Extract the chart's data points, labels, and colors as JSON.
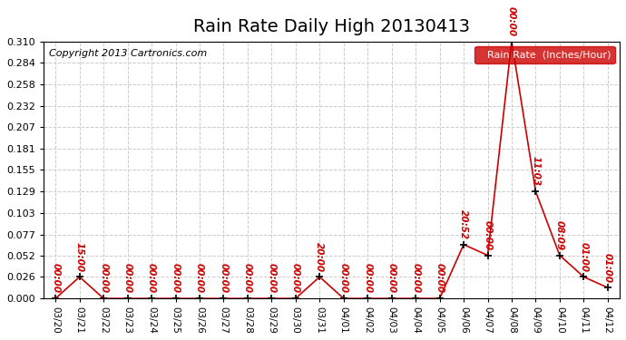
{
  "title": "Rain Rate Daily High 20130413",
  "copyright": "Copyright 2013 Cartronics.com",
  "legend_label": "Rain Rate  (Inches/Hour)",
  "x_labels": [
    "03/20",
    "03/21",
    "03/22",
    "03/23",
    "03/24",
    "03/25",
    "03/26",
    "03/27",
    "03/28",
    "03/29",
    "03/30",
    "03/31",
    "04/01",
    "04/02",
    "04/03",
    "04/04",
    "04/05",
    "04/06",
    "04/07",
    "04/08",
    "04/09",
    "04/10",
    "04/11",
    "04/12"
  ],
  "y_values": [
    0.0,
    0.026,
    0.0,
    0.0,
    0.0,
    0.0,
    0.0,
    0.0,
    0.0,
    0.0,
    0.0,
    0.026,
    0.0,
    0.0,
    0.0,
    0.0,
    0.0,
    0.065,
    0.052,
    0.31,
    0.129,
    0.052,
    0.026,
    0.013
  ],
  "point_labels": [
    "00:00",
    "15:00",
    "00:00",
    "00:00",
    "00:00",
    "00:00",
    "00:00",
    "00:00",
    "00:00",
    "00:00",
    "00:00",
    "20:00",
    "00:00",
    "00:00",
    "00:00",
    "00:00",
    "00:00",
    "20:52",
    "00:00",
    "00:00",
    "11:03",
    "08:09",
    "01:00",
    "01:00"
  ],
  "ylim": [
    0.0,
    0.31
  ],
  "yticks": [
    0.0,
    0.026,
    0.052,
    0.077,
    0.103,
    0.129,
    0.155,
    0.181,
    0.207,
    0.232,
    0.258,
    0.284,
    0.31
  ],
  "line_color": "#cc0000",
  "marker_color": "#000000",
  "label_color": "#cc0000",
  "legend_bg": "#cc0000",
  "legend_fg": "#ffffff",
  "grid_color": "#cccccc",
  "bg_color": "#ffffff",
  "title_fontsize": 14,
  "copyright_fontsize": 8,
  "label_fontsize": 7.5
}
